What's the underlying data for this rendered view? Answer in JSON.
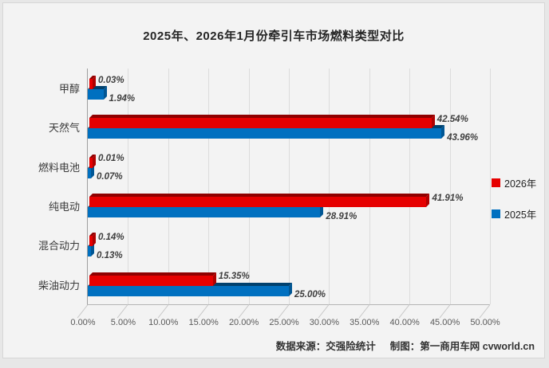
{
  "chart_data": {
    "type": "bar",
    "orientation": "horizontal",
    "style": "3d",
    "title": "2025年、2026年1月份牵引车市场燃料类型对比",
    "categories": [
      "甲醇",
      "天然气",
      "燃料电池",
      "纯电动",
      "混合动力",
      "柴油动力"
    ],
    "series": [
      {
        "name": "2026年",
        "color": "#e60000",
        "color_top": "#8f0000",
        "color_side": "#b00000",
        "values": [
          0.03,
          42.54,
          0.01,
          41.91,
          0.14,
          15.35
        ],
        "labels": [
          "0.03%",
          "42.54%",
          "0.01%",
          "41.91%",
          "0.14%",
          "15.35%"
        ]
      },
      {
        "name": "2025年",
        "color": "#0070c0",
        "color_top": "#00416e",
        "color_side": "#005694",
        "values": [
          1.94,
          43.96,
          0.07,
          28.91,
          0.13,
          25.0
        ],
        "labels": [
          "1.94%",
          "43.96%",
          "0.07%",
          "28.91%",
          "0.13%",
          "25.00%"
        ]
      }
    ],
    "xlim": [
      0,
      50
    ],
    "x_ticks": [
      "0.00%",
      "5.00%",
      "10.00%",
      "15.00%",
      "20.00%",
      "25.00%",
      "30.00%",
      "35.00%",
      "40.00%",
      "45.00%",
      "50.00%"
    ],
    "grid": true,
    "legend_position": "right"
  },
  "footer": {
    "source": "数据来源：交强险统计",
    "credit": "制图：第一商用车网 cvworld.cn"
  }
}
